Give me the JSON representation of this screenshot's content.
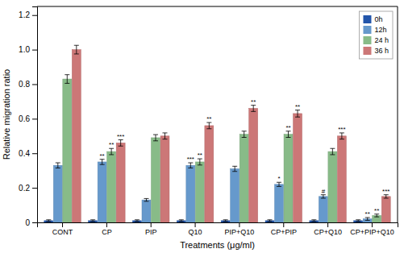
{
  "chart_data": {
    "type": "bar",
    "categories": [
      "CONT",
      "CP",
      "PIP",
      "Q10",
      "PIP+Q10",
      "CP+PIP",
      "CP+Q10",
      "CP+PIP+Q10"
    ],
    "series": [
      {
        "name": "0h",
        "color": "#2255aa",
        "values": [
          0.01,
          0.01,
          0.01,
          0.01,
          0.01,
          0.01,
          0.01,
          0.01
        ],
        "errors": [
          0.005,
          0.005,
          0.005,
          0.005,
          0.005,
          0.005,
          0.005,
          0.005
        ]
      },
      {
        "name": "12h",
        "color": "#6699cc",
        "values": [
          0.33,
          0.35,
          0.13,
          0.33,
          0.31,
          0.22,
          0.15,
          0.02
        ],
        "errors": [
          0.015,
          0.015,
          0.008,
          0.015,
          0.015,
          0.012,
          0.01,
          0.008
        ],
        "significance": [
          null,
          "**",
          null,
          "***",
          null,
          "*",
          "#",
          "**"
        ]
      },
      {
        "name": "24 h",
        "color": "#88bb88",
        "values": [
          0.83,
          0.41,
          0.49,
          0.35,
          0.51,
          0.51,
          0.41,
          0.04
        ],
        "errors": [
          0.025,
          0.018,
          0.018,
          0.018,
          0.018,
          0.018,
          0.018,
          0.008
        ],
        "significance": [
          null,
          "**",
          null,
          "**",
          null,
          "**",
          null,
          "**"
        ]
      },
      {
        "name": "36 h",
        "color": "#cc7777",
        "values": [
          1.0,
          0.46,
          0.5,
          0.56,
          0.66,
          0.63,
          0.5,
          0.15
        ],
        "errors": [
          0.025,
          0.018,
          0.018,
          0.018,
          0.018,
          0.02,
          0.018,
          0.01
        ],
        "significance": [
          null,
          "***",
          null,
          "**",
          "**",
          "**",
          "***",
          "***"
        ]
      }
    ],
    "xlabel": "Treatments (μg/ml)",
    "ylabel": "Relative migration ratio",
    "ylim": [
      0,
      1.25
    ],
    "yticks": [
      0,
      0.2,
      0.4,
      0.6,
      0.8,
      {
        "value": 1.0,
        "label": "1.0"
      },
      1.2
    ],
    "grid": false,
    "legend": "upper right"
  }
}
